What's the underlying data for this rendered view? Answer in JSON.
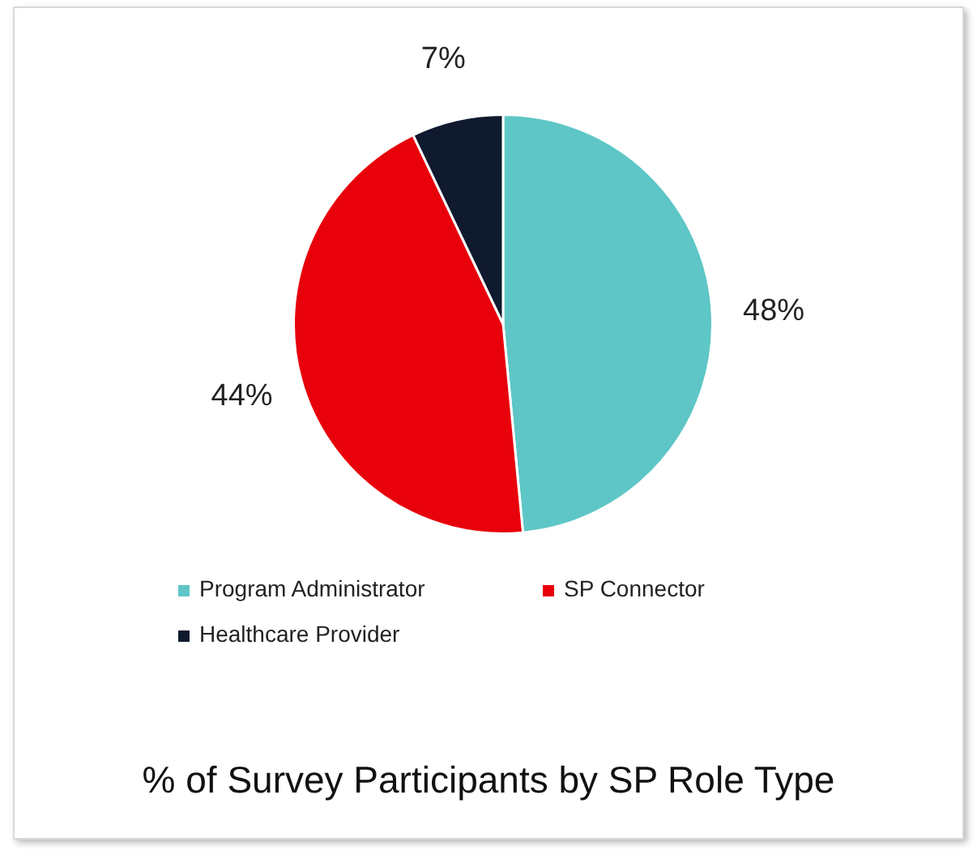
{
  "chart_data": {
    "type": "pie",
    "title": "% of Survey Participants by SP Role Type",
    "categories": [
      "Program Administrator",
      "SP Connector",
      "Healthcare Provider"
    ],
    "values": [
      48,
      44,
      7
    ],
    "colors": [
      "#5ec6c6",
      "#e8000b",
      "#0f1a2e"
    ],
    "value_labels": [
      "48%",
      "44%",
      "7%"
    ],
    "legend": "bottom"
  }
}
